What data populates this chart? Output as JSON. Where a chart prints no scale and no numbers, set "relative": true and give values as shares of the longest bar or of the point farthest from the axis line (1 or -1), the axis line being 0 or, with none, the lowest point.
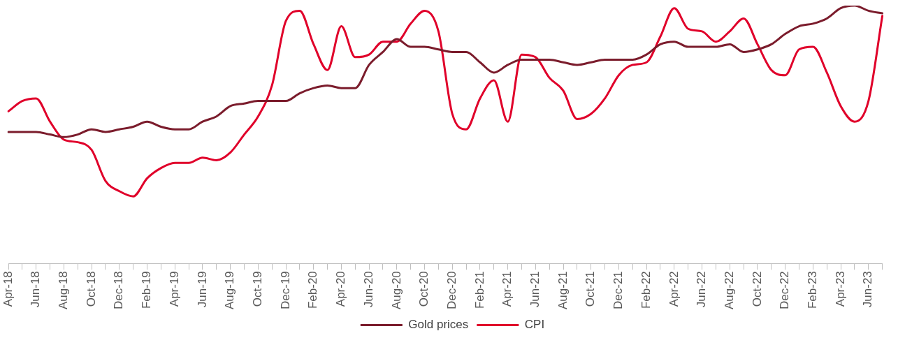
{
  "chart_data": {
    "type": "line",
    "relative": true,
    "legend": "bottom",
    "grid": false,
    "marker": "none",
    "line_style": "solid",
    "categories": [
      "Apr-18",
      null,
      "Jun-18",
      null,
      "Aug-18",
      null,
      "Oct-18",
      null,
      "Dec-18",
      null,
      "Feb-19",
      null,
      "Apr-19",
      null,
      "Jun-19",
      null,
      "Aug-19",
      null,
      "Oct-19",
      null,
      "Dec-19",
      null,
      "Feb-20",
      null,
      "Apr-20",
      null,
      "Jun-20",
      null,
      "Aug-20",
      null,
      "Oct-20",
      null,
      "Dec-20",
      null,
      "Feb-21",
      null,
      "Apr-21",
      null,
      "Jun-21",
      null,
      "Aug-21",
      null,
      "Oct-21",
      null,
      "Dec-21",
      null,
      "Feb-22",
      null,
      "Apr-22",
      null,
      "Jun-22",
      null,
      "Aug-22",
      null,
      "Oct-22",
      null,
      "Dec-22",
      null,
      "Feb-23",
      null,
      "Apr-23",
      null,
      "Jun-23",
      null
    ],
    "series": [
      {
        "name": "Gold prices",
        "color": "#7b1c2c",
        "values": [
          0.51,
          0.51,
          0.51,
          0.5,
          0.49,
          0.5,
          0.52,
          0.51,
          0.52,
          0.53,
          0.55,
          0.53,
          0.52,
          0.52,
          0.55,
          0.57,
          0.61,
          0.62,
          0.63,
          0.63,
          0.63,
          0.66,
          0.68,
          0.69,
          0.68,
          0.68,
          0.77,
          0.82,
          0.87,
          0.84,
          0.84,
          0.83,
          0.82,
          0.82,
          0.78,
          0.74,
          0.77,
          0.79,
          0.79,
          0.79,
          0.78,
          0.77,
          0.78,
          0.79,
          0.79,
          0.79,
          0.81,
          0.85,
          0.86,
          0.84,
          0.84,
          0.84,
          0.85,
          0.82,
          0.83,
          0.85,
          0.89,
          0.92,
          0.93,
          0.95,
          0.99,
          1,
          0.98,
          0.97
        ]
      },
      {
        "name": "CPI",
        "color": "#e0002a",
        "values": [
          0.59,
          0.63,
          0.64,
          0.55,
          0.48,
          0.47,
          0.44,
          0.32,
          0.28,
          0.26,
          0.33,
          0.37,
          0.39,
          0.39,
          0.41,
          0.4,
          0.43,
          0.5,
          0.57,
          0.69,
          0.94,
          0.98,
          0.85,
          0.75,
          0.92,
          0.8,
          0.81,
          0.86,
          0.86,
          0.93,
          0.98,
          0.9,
          0.58,
          0.52,
          0.64,
          0.71,
          0.55,
          0.81,
          0.8,
          0.72,
          0.67,
          0.56,
          0.58,
          0.64,
          0.73,
          0.77,
          0.78,
          0.88,
          0.99,
          0.91,
          0.9,
          0.86,
          0.9,
          0.95,
          0.85,
          0.75,
          0.73,
          0.83,
          0.84,
          0.74,
          0.61,
          0.55,
          0.63,
          0.96
        ]
      }
    ]
  }
}
